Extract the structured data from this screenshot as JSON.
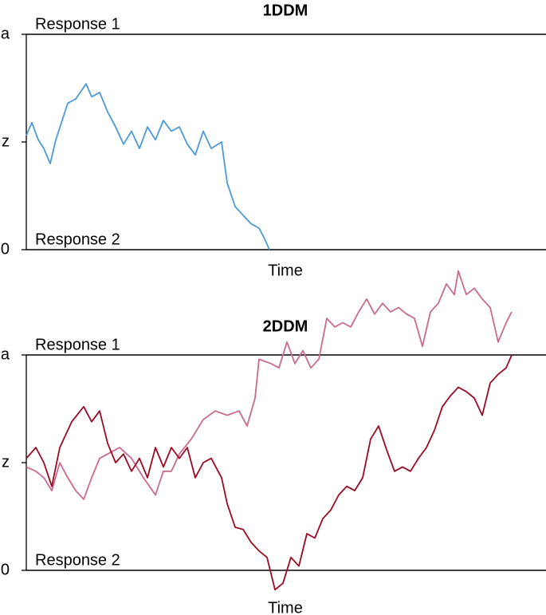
{
  "chart_data": [
    {
      "type": "line",
      "title": "1DDM",
      "x_label": "Time",
      "annotations": [
        "Response 1",
        "Response 2"
      ],
      "xlim": [
        0,
        652
      ],
      "ylim": [
        0,
        1
      ],
      "yticks": [
        0,
        {
          "value": 0.5,
          "label": "z"
        },
        {
          "value": 1,
          "label": "a"
        }
      ],
      "boundaries": [
        0,
        1
      ],
      "series": [
        {
          "color": "#4a9ad8",
          "x": [
            0,
            7,
            15,
            22,
            30,
            37,
            45,
            52,
            62,
            75,
            82,
            92,
            102,
            112,
            122,
            132,
            142,
            152,
            162,
            172,
            182,
            192,
            202,
            212,
            222,
            232,
            245,
            252,
            262,
            272,
            282,
            292,
            299,
            305
          ],
          "values": [
            0.53,
            0.59,
            0.51,
            0.47,
            0.4,
            0.51,
            0.6,
            0.68,
            0.7,
            0.77,
            0.71,
            0.73,
            0.64,
            0.57,
            0.49,
            0.55,
            0.47,
            0.57,
            0.51,
            0.6,
            0.55,
            0.57,
            0.49,
            0.44,
            0.55,
            0.47,
            0.5,
            0.31,
            0.2,
            0.16,
            0.12,
            0.1,
            0.05,
            0
          ]
        }
      ]
    },
    {
      "type": "line",
      "title": "2DDM",
      "x_label": "Time",
      "annotations": [
        "Response 1",
        "Response 2"
      ],
      "xlim": [
        0,
        652
      ],
      "ylim": [
        -0.1,
        1.4
      ],
      "yticks": [
        0,
        {
          "value": 0.5,
          "label": "z"
        },
        {
          "value": 1,
          "label": "a"
        }
      ],
      "boundaries": [
        0,
        1
      ],
      "series": [
        {
          "color": "#c96b8e",
          "x": [
            0,
            12,
            22,
            32,
            42,
            52,
            62,
            72,
            82,
            92,
            102,
            117,
            132,
            147,
            162,
            172,
            182,
            192,
            207,
            222,
            237,
            252,
            267,
            277,
            287,
            292,
            307,
            317,
            327,
            337,
            347,
            357,
            367,
            377,
            387,
            397,
            407,
            417,
            427,
            437,
            447,
            457,
            467,
            477,
            487,
            497,
            507,
            517,
            527,
            537,
            542,
            552,
            562,
            572,
            582,
            592,
            602,
            609
          ],
          "values": [
            0.48,
            0.46,
            0.43,
            0.37,
            0.5,
            0.43,
            0.37,
            0.33,
            0.43,
            0.52,
            0.54,
            0.57,
            0.52,
            0.43,
            0.35,
            0.46,
            0.46,
            0.54,
            0.61,
            0.7,
            0.74,
            0.72,
            0.74,
            0.67,
            0.8,
            0.98,
            0.96,
            0.94,
            1.06,
            0.96,
            1.02,
            0.94,
            0.98,
            1.17,
            1.13,
            1.15,
            1.13,
            1.2,
            1.26,
            1.19,
            1.24,
            1.2,
            1.22,
            1.19,
            1.17,
            1.04,
            1.2,
            1.24,
            1.33,
            1.28,
            1.39,
            1.28,
            1.31,
            1.26,
            1.22,
            1.06,
            1.15,
            1.2
          ]
        },
        {
          "color": "#9b0a22",
          "x": [
            0,
            12,
            22,
            32,
            42,
            57,
            72,
            82,
            92,
            102,
            112,
            122,
            132,
            142,
            152,
            162,
            172,
            182,
            192,
            202,
            212,
            222,
            232,
            245,
            252,
            262,
            272,
            282,
            292,
            302,
            312,
            322,
            332,
            342,
            352,
            362,
            372,
            382,
            392,
            402,
            412,
            422,
            432,
            442,
            452,
            462,
            472,
            482,
            492,
            502,
            512,
            522,
            532,
            542,
            552,
            562,
            572,
            582,
            592,
            602,
            609
          ],
          "values": [
            0.52,
            0.57,
            0.5,
            0.39,
            0.57,
            0.69,
            0.76,
            0.69,
            0.74,
            0.59,
            0.5,
            0.54,
            0.46,
            0.52,
            0.43,
            0.57,
            0.48,
            0.57,
            0.52,
            0.57,
            0.43,
            0.5,
            0.52,
            0.43,
            0.31,
            0.2,
            0.19,
            0.13,
            0.09,
            0.06,
            -0.09,
            -0.06,
            0.06,
            0.02,
            0.17,
            0.15,
            0.24,
            0.28,
            0.35,
            0.39,
            0.37,
            0.43,
            0.61,
            0.67,
            0.56,
            0.46,
            0.48,
            0.46,
            0.52,
            0.57,
            0.65,
            0.76,
            0.81,
            0.85,
            0.83,
            0.8,
            0.72,
            0.87,
            0.91,
            0.94,
            1.0
          ]
        }
      ]
    }
  ]
}
